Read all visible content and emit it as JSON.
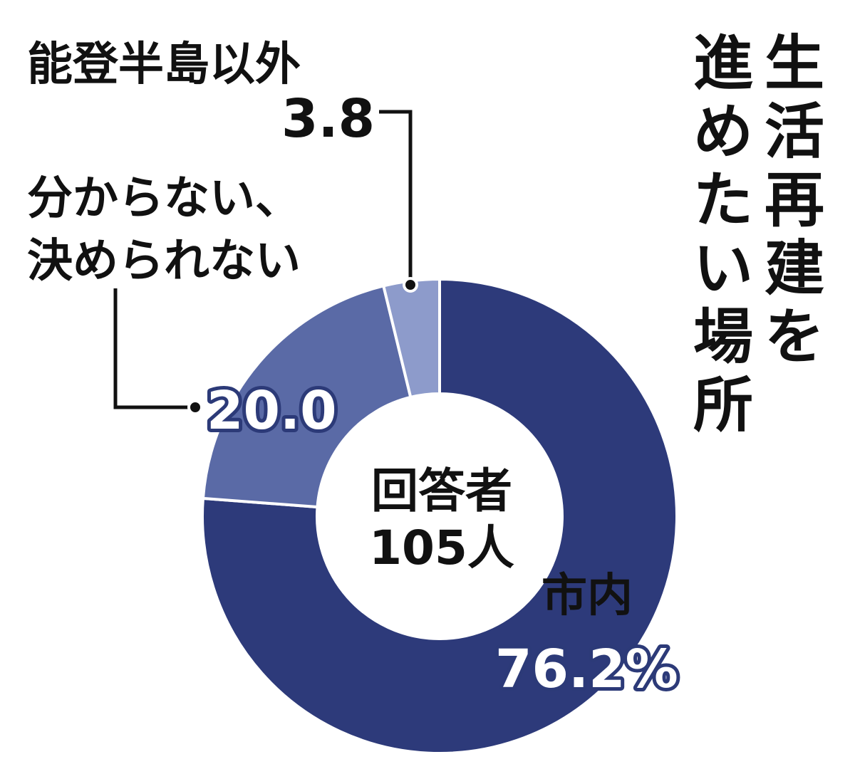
{
  "chart_data": {
    "type": "pie",
    "title": "生活再建を進めたい場所",
    "center_label_line1": "回答者",
    "center_label_line2": "105人",
    "slices": [
      {
        "label": "市内",
        "value": 76.2,
        "value_text": "76.2%",
        "color": "#2d3a7a"
      },
      {
        "label_line1": "分からない、",
        "label_line2": "決められない",
        "value": 20.0,
        "value_text": "20.0",
        "color": "#5a6aa6"
      },
      {
        "label": "能登半島以外",
        "value": 3.8,
        "value_text": "3.8",
        "color": "#8d9bcb"
      }
    ]
  }
}
